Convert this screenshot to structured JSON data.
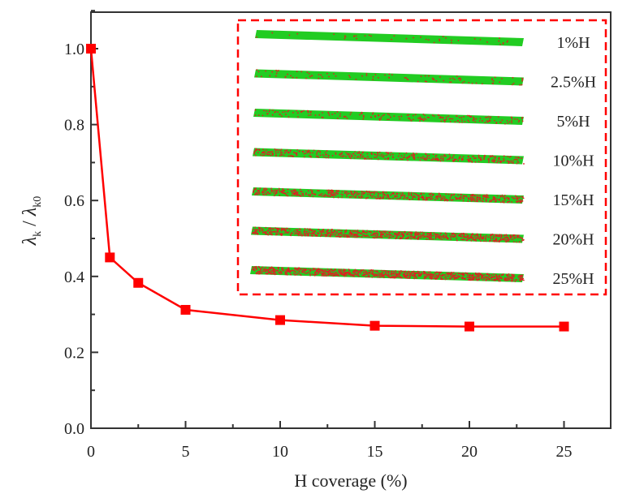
{
  "chart_data": {
    "type": "line",
    "title": "",
    "xlabel": "H coverage (%)",
    "ylabel_main": "λ",
    "ylabel_sub1": "k",
    "ylabel_sep": " / ",
    "ylabel_sub2": "k0",
    "xlim": [
      -0.2,
      27.5
    ],
    "ylim": [
      0,
      1.1
    ],
    "xticks": [
      0,
      5,
      10,
      15,
      20,
      25
    ],
    "xtick_labels": [
      "0",
      "5",
      "10",
      "15",
      "20",
      "25"
    ],
    "yticks": [
      0.0,
      0.2,
      0.4,
      0.6,
      0.8,
      1.0
    ],
    "ytick_labels": [
      "0.0",
      "0.2",
      "0.4",
      "0.6",
      "0.8",
      "1.0"
    ],
    "grid": false,
    "series": [
      {
        "name": "lambda_ratio",
        "color": "#ff0000",
        "marker": "square",
        "x": [
          0,
          1,
          2.5,
          5,
          10,
          15,
          20,
          25
        ],
        "y": [
          1.0,
          0.45,
          0.383,
          0.312,
          0.285,
          0.27,
          0.268,
          0.268
        ]
      }
    ],
    "inset": {
      "border_color": "#ff0000",
      "strand_color": "#22cc22",
      "atom_color": "#dd2222",
      "labels": [
        "1%H",
        "2.5%H",
        "5%H",
        "10%H",
        "15%H",
        "20%H",
        "25%H"
      ],
      "coverage": [
        1,
        2.5,
        5,
        10,
        15,
        20,
        25
      ]
    }
  }
}
